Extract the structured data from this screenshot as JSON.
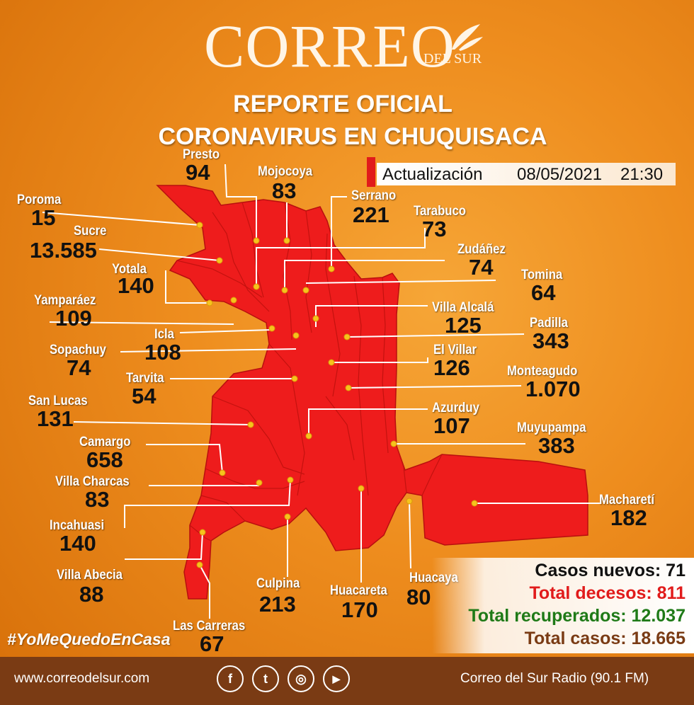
{
  "brand": {
    "name": "CORREO",
    "sub": "DEL SUR"
  },
  "title": {
    "line1": "REPORTE OFICIAL",
    "line2": "CORONAVIRUS EN CHUQUISACA"
  },
  "update": {
    "label": "Actualización",
    "date": "08/05/2021",
    "time": "21:30"
  },
  "colors": {
    "background": "#ee8d1e",
    "map": "#ee1c1c",
    "footer": "#7a3b14",
    "new_cases": "#111111",
    "deaths": "#e11b1b",
    "recovered": "#1f7a17",
    "total": "#7a3b14"
  },
  "municipalities": [
    {
      "name": "Presto",
      "value": "94"
    },
    {
      "name": "Mojocoya",
      "value": "83"
    },
    {
      "name": "Serrano",
      "value": "221"
    },
    {
      "name": "Poroma",
      "value": "15"
    },
    {
      "name": "Sucre",
      "value": "13.585"
    },
    {
      "name": "Tarabuco",
      "value": "73"
    },
    {
      "name": "Zudáñez",
      "value": "74"
    },
    {
      "name": "Yotala",
      "value": "140"
    },
    {
      "name": "Tomina",
      "value": "64"
    },
    {
      "name": "Yamparáez",
      "value": "109"
    },
    {
      "name": "Villa Alcalá",
      "value": "125"
    },
    {
      "name": "Icla",
      "value": "108"
    },
    {
      "name": "Padilla",
      "value": "343"
    },
    {
      "name": "Sopachuy",
      "value": "74"
    },
    {
      "name": "El Villar",
      "value": "126"
    },
    {
      "name": "Tarvita",
      "value": "54"
    },
    {
      "name": "Monteagudo",
      "value": "1.070"
    },
    {
      "name": "San Lucas",
      "value": "131"
    },
    {
      "name": "Azurduy",
      "value": "107"
    },
    {
      "name": "Muyupampa",
      "value": "383"
    },
    {
      "name": "Camargo",
      "value": "658"
    },
    {
      "name": "Villa Charcas",
      "value": "83"
    },
    {
      "name": "Macharetí",
      "value": "182"
    },
    {
      "name": "Incahuasi",
      "value": "140"
    },
    {
      "name": "Villa Abecia",
      "value": "88"
    },
    {
      "name": "Culpina",
      "value": "213"
    },
    {
      "name": "Huacareta",
      "value": "170"
    },
    {
      "name": "Huacaya",
      "value": "80"
    },
    {
      "name": "Las Carreras",
      "value": "67"
    }
  ],
  "stats": {
    "new_cases": "Casos nuevos: 71",
    "deaths": "Total decesos: 811",
    "recovered": "Total recuperados: 12.037",
    "total": "Total casos: 18.665"
  },
  "hashtag": "#YoMeQuedoEnCasa",
  "footer": {
    "website": "www.correodelsur.com",
    "radio": "Correo del Sur Radio (90.1 FM)",
    "social": [
      {
        "icon": "facebook-icon",
        "glyph": "f"
      },
      {
        "icon": "twitter-icon",
        "glyph": "t"
      },
      {
        "icon": "instagram-icon",
        "glyph": "◎"
      },
      {
        "icon": "youtube-icon",
        "glyph": "▶"
      }
    ]
  }
}
